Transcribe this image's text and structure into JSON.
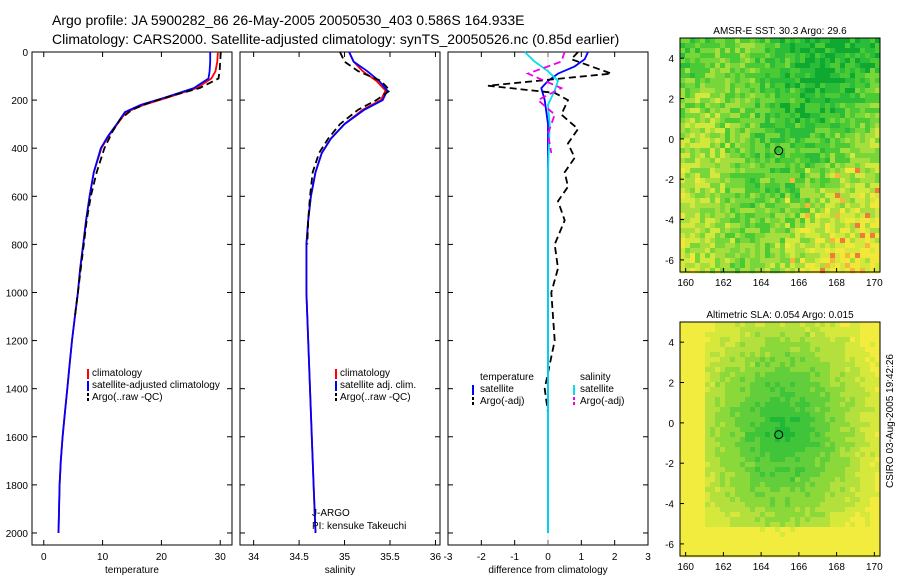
{
  "header": {
    "line1": "Argo profile: JA 5900282_86 26-May-2005 20050530_403 0.586S 164.933E",
    "line2": "Climatology: CARS2000. Satellite-adjusted climatology: synTS_20050526.nc (0.85d earlier)"
  },
  "chart_data": [
    {
      "type": "line",
      "id": "temperature",
      "xlabel": "temperature",
      "ylabel": "",
      "xlim": [
        -2,
        32
      ],
      "ylim": [
        2050,
        0
      ],
      "xticks": [
        0,
        10,
        20,
        30
      ],
      "yticks": [
        0,
        200,
        400,
        600,
        800,
        1000,
        1200,
        1400,
        1600,
        1800,
        2000
      ],
      "legend": [
        "climatology",
        "satellite-adjusted climatology",
        "Argo(..raw -QC)"
      ],
      "series": [
        {
          "name": "climatology",
          "color": "#ff0000",
          "dash": "",
          "x": [
            29.6,
            29.5,
            29.2,
            28.5,
            26.0,
            21.0,
            17.0,
            14.0,
            12.5,
            11.0,
            9.8,
            8.5,
            7.8,
            7.2,
            6.7,
            6.2,
            5.8,
            5.3,
            4.8,
            4.4,
            4.0,
            3.6,
            3.2,
            2.9,
            2.7,
            2.5
          ],
          "y": [
            0,
            40,
            80,
            110,
            150,
            190,
            220,
            250,
            300,
            350,
            400,
            500,
            600,
            700,
            800,
            900,
            1000,
            1100,
            1200,
            1300,
            1400,
            1500,
            1600,
            1700,
            1800,
            2000
          ]
        },
        {
          "name": "satellite-adjusted climatology",
          "color": "#0000ff",
          "dash": "",
          "x": [
            28.3,
            28.3,
            28.2,
            28.0,
            25.5,
            20.5,
            16.5,
            13.8,
            12.4,
            10.9,
            9.7,
            8.5,
            7.8,
            7.2,
            6.7,
            6.2,
            5.8,
            5.3,
            4.8,
            4.4,
            4.0,
            3.6,
            3.2,
            2.9,
            2.7,
            2.5
          ],
          "y": [
            0,
            40,
            80,
            110,
            150,
            190,
            220,
            250,
            300,
            350,
            400,
            500,
            600,
            700,
            800,
            900,
            1000,
            1100,
            1200,
            1300,
            1400,
            1500,
            1600,
            1700,
            1800,
            2000
          ]
        },
        {
          "name": "Argo(..raw -QC)",
          "color": "#000000",
          "dash": "7,4",
          "x": [
            30.1,
            30.0,
            29.9,
            29.7,
            26.5,
            22.0,
            18.0,
            15.0,
            13.0,
            11.7,
            10.3,
            9.0,
            8.0,
            7.3,
            6.8,
            6.3,
            5.8,
            5.3
          ],
          "y": [
            0,
            40,
            80,
            110,
            150,
            180,
            210,
            240,
            280,
            330,
            400,
            500,
            600,
            700,
            800,
            900,
            1000,
            1100
          ]
        }
      ]
    },
    {
      "type": "line",
      "id": "salinity",
      "xlabel": "salinity",
      "xlim": [
        33.85,
        36.05
      ],
      "ylim": [
        2050,
        0
      ],
      "xticks": [
        34,
        34.5,
        35,
        35.5,
        36
      ],
      "legend": [
        "climatology",
        "satellite adj. clim.",
        "Argo(..raw -QC)"
      ],
      "annotations": [
        "J-ARGO",
        "PI: kensuke Takeuchi"
      ],
      "series": [
        {
          "name": "climatology",
          "color": "#ff0000",
          "dash": "",
          "x": [
            35.05,
            35.1,
            35.2,
            35.35,
            35.45,
            35.4,
            35.2,
            35.0,
            34.85,
            34.75,
            34.68,
            34.63,
            34.6,
            34.58,
            34.58,
            34.6,
            34.62,
            34.64,
            34.66,
            34.68
          ],
          "y": [
            0,
            40,
            80,
            120,
            160,
            200,
            240,
            300,
            360,
            420,
            500,
            600,
            700,
            800,
            1000,
            1200,
            1400,
            1600,
            1800,
            2000
          ]
        },
        {
          "name": "satellite adj. clim.",
          "color": "#0000ff",
          "dash": "",
          "x": [
            35.05,
            35.1,
            35.25,
            35.38,
            35.47,
            35.42,
            35.22,
            35.0,
            34.85,
            34.75,
            34.68,
            34.63,
            34.6,
            34.58,
            34.58,
            34.6,
            34.62,
            34.64,
            34.66,
            34.68
          ],
          "y": [
            0,
            40,
            80,
            120,
            160,
            200,
            240,
            300,
            360,
            420,
            500,
            600,
            700,
            800,
            1000,
            1200,
            1400,
            1600,
            1800,
            2000
          ]
        },
        {
          "name": "Argo(..raw -QC)",
          "color": "#000000",
          "dash": "7,4",
          "x": [
            34.95,
            35.0,
            35.15,
            35.4,
            35.5,
            35.35,
            35.15,
            34.95,
            34.82,
            34.72,
            34.65,
            34.62,
            34.6,
            34.59
          ],
          "y": [
            0,
            40,
            80,
            120,
            160,
            200,
            240,
            300,
            360,
            420,
            500,
            600,
            700,
            800
          ]
        }
      ]
    },
    {
      "type": "line",
      "id": "difference",
      "xlabel": "difference from climatology",
      "xlim": [
        -3,
        3
      ],
      "ylim": [
        2050,
        0
      ],
      "xticks": [
        -3,
        -2,
        -1,
        0,
        1,
        2,
        3
      ],
      "legend_left": [
        "temperature",
        "satellite",
        "Argo(-adj)"
      ],
      "legend_right": [
        "salinity",
        "satellite",
        "Argo(-adj)"
      ],
      "series": [
        {
          "name": "temperature satellite",
          "color": "#0000ff",
          "dash": "",
          "x": [
            1.2,
            1.1,
            0.8,
            0.3,
            0.0,
            -0.2,
            -0.1,
            0.0,
            0.0,
            0.0,
            0.0,
            0.0,
            0.0,
            0.0
          ],
          "y": [
            0,
            30,
            60,
            90,
            120,
            150,
            200,
            300,
            500,
            800,
            1100,
            1400,
            1700,
            2000
          ]
        },
        {
          "name": "temperature Argo(-adj)",
          "color": "#000000",
          "dash": "7,4",
          "x": [
            0.9,
            0.7,
            1.9,
            -1.8,
            0.2,
            0.6,
            0.4,
            0.9,
            0.6,
            0.8,
            0.5,
            0.6,
            0.3,
            0.5,
            0.2,
            0.3,
            0.1,
            0.2,
            -0.1,
            0.0
          ],
          "y": [
            0,
            30,
            90,
            140,
            170,
            200,
            260,
            320,
            380,
            440,
            500,
            560,
            620,
            700,
            800,
            900,
            1000,
            1200,
            1400,
            1500
          ]
        },
        {
          "name": "salinity satellite",
          "color": "#00e0ee",
          "dash": "",
          "x": [
            -0.7,
            -0.4,
            0.0,
            0.3,
            0.2,
            0.0,
            0.05,
            0.0,
            0.0,
            0.0,
            0.0,
            0.0
          ],
          "y": [
            0,
            40,
            80,
            120,
            160,
            220,
            300,
            500,
            800,
            1200,
            1600,
            2000
          ]
        },
        {
          "name": "salinity Argo(-adj)",
          "color": "#ee00ee",
          "dash": "7,4",
          "x": [
            0.5,
            0.4,
            -0.6,
            0.4,
            -0.3,
            0.2,
            0.0,
            0.1
          ],
          "y": [
            0,
            40,
            90,
            150,
            200,
            260,
            340,
            420
          ]
        }
      ]
    }
  ],
  "maps": [
    {
      "title": "AMSR-E SST: 30.3 Argo: 29.6",
      "xticks": [
        160,
        162,
        164,
        166,
        168,
        170
      ],
      "yticks": [
        4,
        2,
        0,
        -2,
        -4,
        -6
      ],
      "xlim": [
        159.7,
        170.3
      ],
      "ylim": [
        -6.6,
        5.0
      ],
      "marker": {
        "lon": 164.933,
        "lat": -0.586
      },
      "palette": [
        "#0fa830",
        "#2bbd3a",
        "#4acb36",
        "#77d63a",
        "#a6df3d",
        "#d2e83d",
        "#f2e83a",
        "#f5b63a",
        "#f07a3a"
      ],
      "bias": "sst"
    },
    {
      "title": "Altimetric SLA: 0.054 Argo: 0.015",
      "xticks": [
        160,
        162,
        164,
        166,
        168,
        170
      ],
      "yticks": [
        4,
        2,
        0,
        -2,
        -4,
        -6
      ],
      "xlim": [
        159.7,
        170.3
      ],
      "ylim": [
        -6.6,
        5.0
      ],
      "marker": {
        "lon": 164.933,
        "lat": -0.586
      },
      "palette": [
        "#20b836",
        "#3fc43a",
        "#63ce3b",
        "#8bd83b",
        "#b3e03c",
        "#d7e83d",
        "#f2ec3e"
      ],
      "bias": "sla"
    }
  ],
  "footer": {
    "stamp": "CSIRO 03-Aug-2005 19:42:26"
  }
}
